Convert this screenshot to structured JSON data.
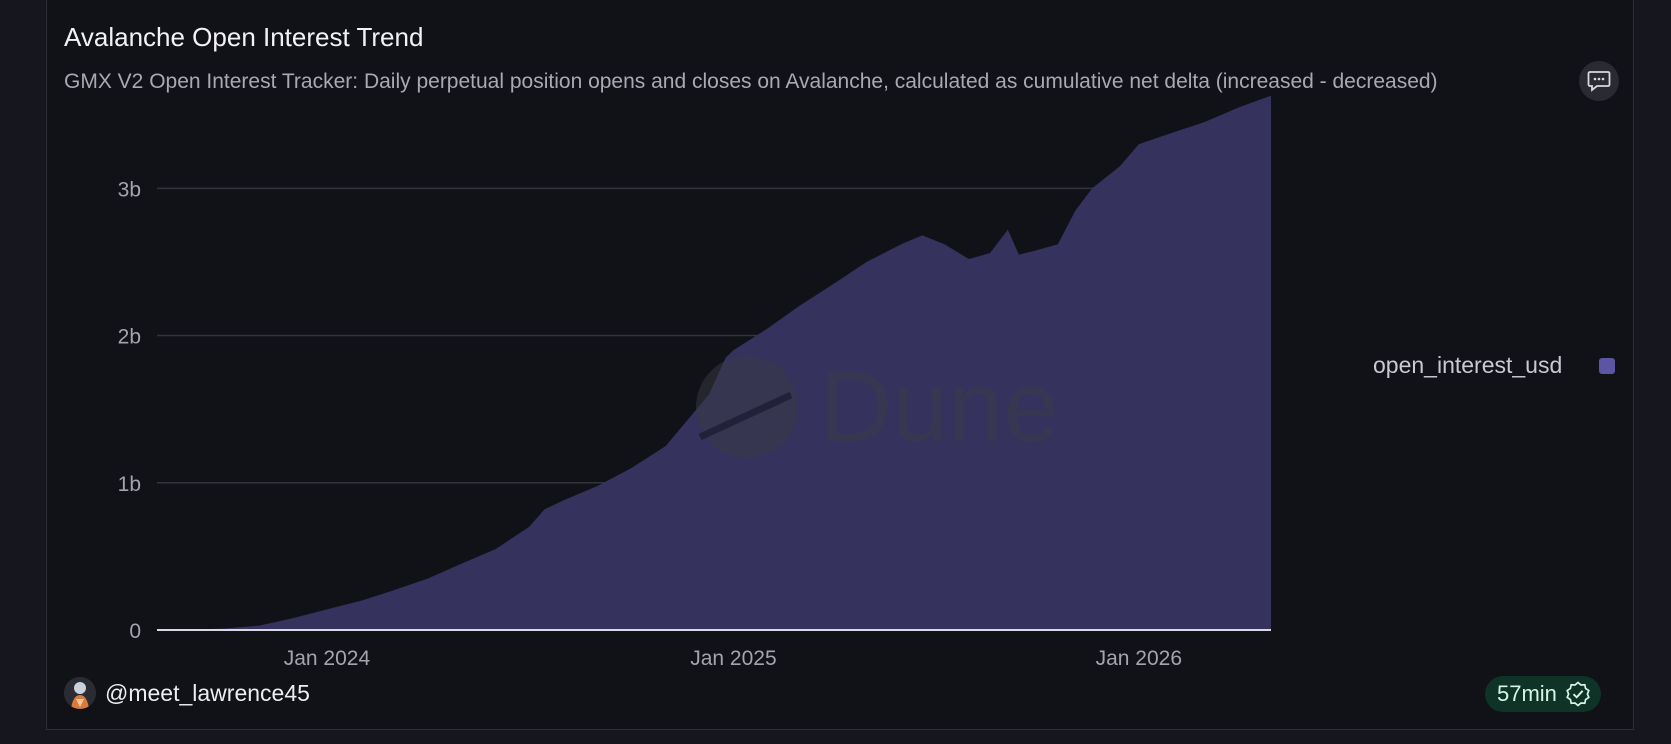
{
  "title": "Avalanche Open Interest Trend",
  "subtitle": "GMX V2 Open Interest Tracker: Daily perpetual position opens and closes on Avalanche, calculated as cumulative net delta (increased - decreased)",
  "watermark": "Dune",
  "author": "@meet_lawrence45",
  "freshness": "57min",
  "icons": {
    "comment": "comment-icon",
    "avatar": "avatar",
    "verified": "verified-check-icon",
    "watermark": "dune-logo"
  },
  "colors": {
    "area_fill": "#35325e",
    "legend_swatch": "#5b55a3",
    "grid": "#33333d",
    "badge_bg": "#0f3326"
  },
  "chart_data": {
    "type": "area",
    "title": "Avalanche Open Interest Trend",
    "x_axis": {
      "type": "date",
      "ticks": [
        "Jan 2024",
        "Jan 2025",
        "Jan 2026"
      ],
      "range": [
        "2023-08-01",
        "2026-04-30"
      ]
    },
    "y_axis": {
      "ticks": [
        "0",
        "1b",
        "2b",
        "3b"
      ],
      "range": [
        0,
        3.6
      ]
    },
    "grid": true,
    "legend": {
      "position": "right",
      "entries": [
        "open_interest_usd"
      ]
    },
    "series": [
      {
        "name": "open_interest_usd",
        "unit": "billion USD",
        "points": [
          [
            "2023-08-01",
            0.0
          ],
          [
            "2023-09-01",
            0.003
          ],
          [
            "2023-10-01",
            0.01
          ],
          [
            "2023-11-01",
            0.03
          ],
          [
            "2023-12-01",
            0.08
          ],
          [
            "2024-01-01",
            0.14
          ],
          [
            "2024-02-01",
            0.2
          ],
          [
            "2024-03-01",
            0.27
          ],
          [
            "2024-04-01",
            0.35
          ],
          [
            "2024-05-01",
            0.45
          ],
          [
            "2024-06-01",
            0.55
          ],
          [
            "2024-07-01",
            0.7
          ],
          [
            "2024-07-15",
            0.82
          ],
          [
            "2024-08-01",
            0.88
          ],
          [
            "2024-09-01",
            0.98
          ],
          [
            "2024-10-01",
            1.1
          ],
          [
            "2024-11-01",
            1.25
          ],
          [
            "2024-11-20",
            1.42
          ],
          [
            "2024-12-10",
            1.6
          ],
          [
            "2024-12-25",
            1.85
          ],
          [
            "2025-01-01",
            1.9
          ],
          [
            "2025-02-01",
            2.05
          ],
          [
            "2025-03-01",
            2.2
          ],
          [
            "2025-04-01",
            2.35
          ],
          [
            "2025-05-01",
            2.5
          ],
          [
            "2025-06-01",
            2.62
          ],
          [
            "2025-06-20",
            2.68
          ],
          [
            "2025-07-10",
            2.62
          ],
          [
            "2025-08-01",
            2.52
          ],
          [
            "2025-08-20",
            2.56
          ],
          [
            "2025-09-05",
            2.72
          ],
          [
            "2025-09-15",
            2.55
          ],
          [
            "2025-10-01",
            2.58
          ],
          [
            "2025-10-20",
            2.62
          ],
          [
            "2025-11-05",
            2.85
          ],
          [
            "2025-11-20",
            3.0
          ],
          [
            "2025-12-15",
            3.15
          ],
          [
            "2026-01-01",
            3.3
          ],
          [
            "2026-02-01",
            3.38
          ],
          [
            "2026-03-01",
            3.45
          ],
          [
            "2026-04-01",
            3.55
          ],
          [
            "2026-04-30",
            3.63
          ]
        ]
      }
    ]
  }
}
